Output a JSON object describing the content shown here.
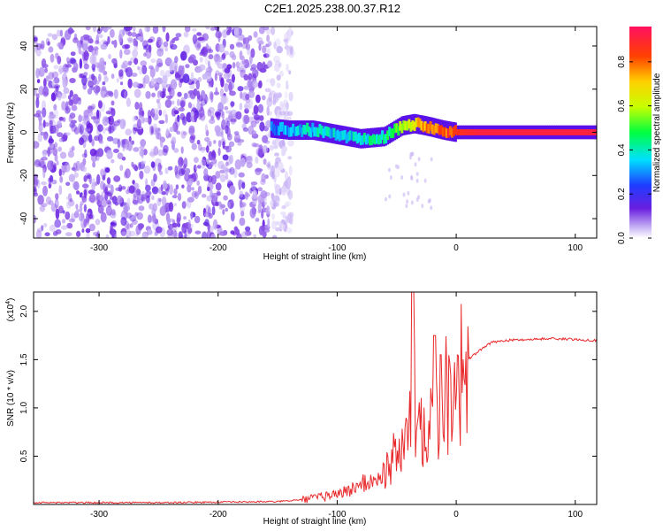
{
  "title": "C2E1.2025.238.00.37.R12",
  "colors": {
    "snr_line": "#e8282a",
    "scatter_purple": "#6a1fe0",
    "axis": "#000000"
  },
  "chart_data": [
    {
      "type": "heatmap",
      "name": "spectrogram",
      "xlabel": "Height of straight line (km)",
      "ylabel": "Frequency (Hz)",
      "xlim": [
        -355,
        118
      ],
      "ylim": [
        -49,
        49
      ],
      "xticks": [
        -300,
        -200,
        -100,
        0,
        100
      ],
      "yticks": [
        -40,
        -20,
        0,
        20,
        40
      ],
      "noise_region_x": [
        -355,
        -158
      ],
      "signal_ridge": {
        "x": [
          -155,
          -140,
          -120,
          -100,
          -80,
          -60,
          -45,
          -35,
          -25,
          -10,
          0,
          20,
          50,
          80,
          118
        ],
        "freq": [
          2,
          1,
          1,
          -1,
          -3,
          -2,
          3,
          4,
          3,
          1,
          0,
          0,
          0,
          0,
          0
        ],
        "amplitude": [
          0.3,
          0.35,
          0.4,
          0.35,
          0.4,
          0.45,
          0.6,
          0.7,
          0.8,
          0.85,
          0.9,
          0.95,
          0.95,
          0.95,
          0.95
        ]
      },
      "colorbar": {
        "label": "Normalized spectral amplitude",
        "ticks": [
          0.0,
          0.2,
          0.4,
          0.6,
          0.8
        ],
        "range": [
          0,
          0.96
        ]
      }
    },
    {
      "type": "line",
      "name": "snr",
      "xlabel": "Height of straight line (km)",
      "ylabel": "SNR (10 * v/v)",
      "yscale_label": "(x10",
      "yscale_exp": "4",
      "xlim": [
        -355,
        118
      ],
      "ylim": [
        0,
        2.2
      ],
      "xticks": [
        -300,
        -200,
        -100,
        0,
        100
      ],
      "yticks": [
        0.5,
        1.0,
        1.5,
        2.0
      ],
      "series": [
        {
          "name": "SNR",
          "x": [
            -355,
            -250,
            -150,
            -130,
            -110,
            -100,
            -90,
            -80,
            -70,
            -60,
            -50,
            -40,
            -36,
            -30,
            -25,
            -20,
            -15,
            -10,
            -5,
            0,
            10,
            20,
            30,
            40,
            60,
            80,
            100,
            118
          ],
          "y": [
            0.02,
            0.02,
            0.03,
            0.05,
            0.09,
            0.12,
            0.15,
            0.22,
            0.25,
            0.35,
            0.55,
            0.75,
            1.1,
            0.9,
            1.0,
            1.15,
            1.05,
            1.2,
            1.3,
            1.45,
            1.5,
            1.6,
            1.68,
            1.7,
            1.71,
            1.72,
            1.71,
            1.7
          ]
        }
      ]
    }
  ]
}
